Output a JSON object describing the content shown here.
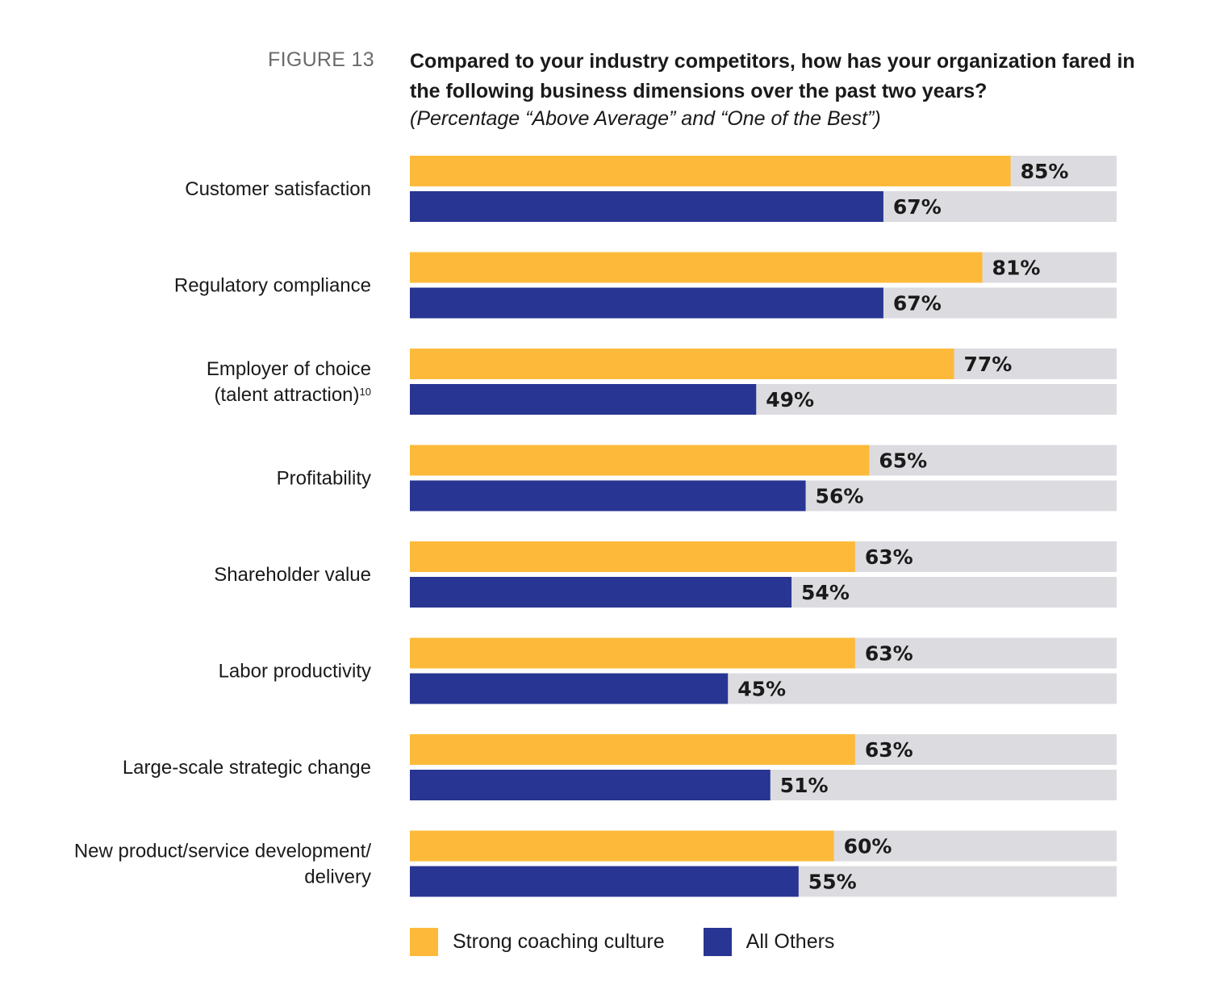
{
  "figure_label": "FIGURE 13",
  "chart_data": {
    "type": "bar",
    "orientation": "horizontal",
    "title": "Compared to your industry competitors, how has your organization fared in the following business dimensions over the past two years?",
    "subtitle": "(Percentage “Above Average” and “One of the Best”)",
    "categories": [
      [
        "Customer satisfaction"
      ],
      [
        "Regulatory compliance"
      ],
      [
        "Employer of choice",
        "(talent attraction)"
      ],
      [
        "Profitability"
      ],
      [
        "Shareholder value"
      ],
      [
        "Labor productivity"
      ],
      [
        "Large-scale strategic change"
      ],
      [
        "New product/service development/",
        "delivery"
      ]
    ],
    "footnote_marks": {
      "2": "10"
    },
    "series": [
      {
        "name": "Strong coaching culture",
        "color": "#FDBA3A",
        "values": [
          85,
          81,
          77,
          65,
          63,
          63,
          63,
          60
        ]
      },
      {
        "name": "All Others",
        "color": "#283592",
        "values": [
          67,
          67,
          49,
          56,
          54,
          45,
          51,
          55
        ]
      }
    ],
    "value_suffix": "%",
    "xlim": [
      0,
      100
    ],
    "track_color": "#DCDCE0",
    "legend_position": "bottom-left",
    "grid": false
  }
}
